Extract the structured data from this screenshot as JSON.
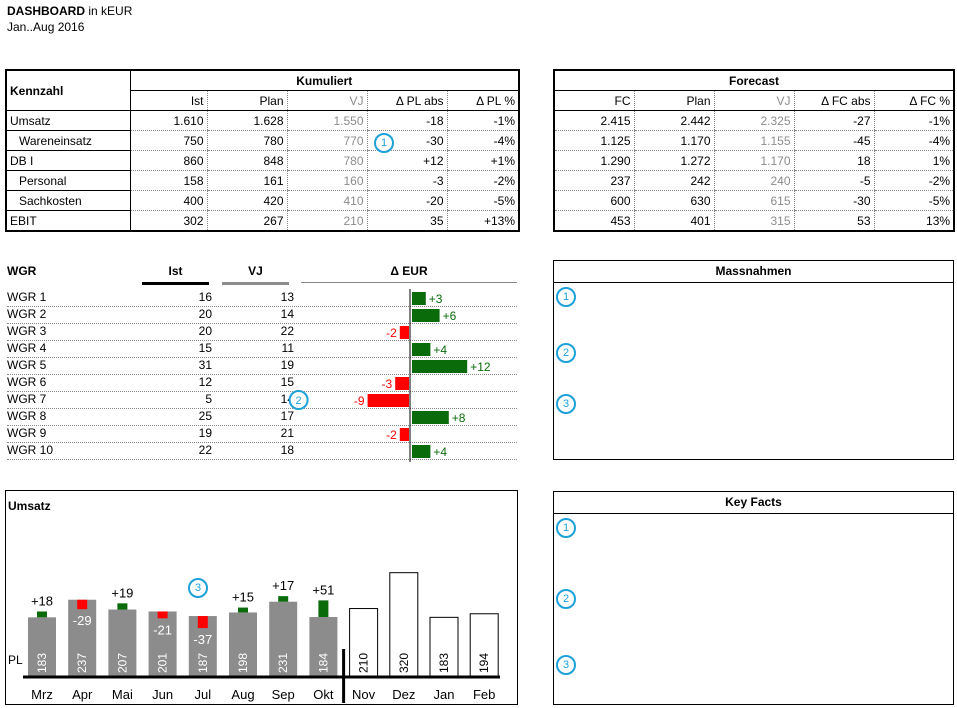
{
  "header": {
    "title": "DASHBOARD",
    "unit": "in kEUR",
    "period": "Jan..Aug 2016"
  },
  "kpi_table": {
    "row_header": "Kennzahl",
    "cum_title": "Kumuliert",
    "fc_title": "Forecast",
    "cum_cols": [
      "Ist",
      "Plan",
      "VJ",
      "Δ PL abs",
      "Δ PL %"
    ],
    "fc_cols": [
      "FC",
      "Plan",
      "VJ",
      "Δ FC abs",
      "Δ FC %"
    ],
    "rows": [
      {
        "label": "Umsatz",
        "sub": false,
        "cum": [
          "1.610",
          "1.628",
          "1.550",
          "-18",
          "-1%"
        ],
        "fc": [
          "2.415",
          "2.442",
          "2.325",
          "-27",
          "-1%"
        ]
      },
      {
        "label": "Wareneinsatz",
        "sub": true,
        "cum": [
          "750",
          "780",
          "770",
          "-30",
          "-4%"
        ],
        "fc": [
          "1.125",
          "1.170",
          "1.155",
          "-45",
          "-4%"
        ]
      },
      {
        "label": "DB I",
        "sub": false,
        "cum": [
          "860",
          "848",
          "780",
          "+12",
          "+1%"
        ],
        "fc": [
          "1.290",
          "1.272",
          "1.170",
          "18",
          "1%"
        ]
      },
      {
        "label": "Personal",
        "sub": true,
        "cum": [
          "158",
          "161",
          "160",
          "-3",
          "-2%"
        ],
        "fc": [
          "237",
          "242",
          "240",
          "-5",
          "-2%"
        ]
      },
      {
        "label": "Sachkosten",
        "sub": true,
        "cum": [
          "400",
          "420",
          "410",
          "-20",
          "-5%"
        ],
        "fc": [
          "600",
          "630",
          "615",
          "-30",
          "-5%"
        ]
      },
      {
        "label": "EBIT",
        "sub": false,
        "cum": [
          "302",
          "267",
          "210",
          "35",
          "+13%"
        ],
        "fc": [
          "453",
          "401",
          "315",
          "53",
          "13%"
        ]
      }
    ],
    "marker": "1"
  },
  "wgr": {
    "headers": {
      "name": "WGR",
      "ist": "Ist",
      "vj": "VJ",
      "delta": "Δ EUR"
    },
    "rows": [
      {
        "name": "WGR 1",
        "ist": 16,
        "vj": 13,
        "delta": 3,
        "delta_label": "+3"
      },
      {
        "name": "WGR 2",
        "ist": 20,
        "vj": 14,
        "delta": 6,
        "delta_label": "+6"
      },
      {
        "name": "WGR 3",
        "ist": 20,
        "vj": 22,
        "delta": -2,
        "delta_label": "-2"
      },
      {
        "name": "WGR 4",
        "ist": 15,
        "vj": 11,
        "delta": 4,
        "delta_label": "+4"
      },
      {
        "name": "WGR 5",
        "ist": 31,
        "vj": 19,
        "delta": 12,
        "delta_label": "+12"
      },
      {
        "name": "WGR 6",
        "ist": 12,
        "vj": 15,
        "delta": -3,
        "delta_label": "-3"
      },
      {
        "name": "WGR 7",
        "ist": 5,
        "vj": 14,
        "delta": -9,
        "delta_label": "-9"
      },
      {
        "name": "WGR 8",
        "ist": 25,
        "vj": 17,
        "delta": 8,
        "delta_label": "+8"
      },
      {
        "name": "WGR 9",
        "ist": 19,
        "vj": 21,
        "delta": -2,
        "delta_label": "-2"
      },
      {
        "name": "WGR 10",
        "ist": 22,
        "vj": 18,
        "delta": 4,
        "delta_label": "+4"
      }
    ],
    "marker": "2"
  },
  "massnahmen": {
    "title": "Massnahmen",
    "markers": [
      "1",
      "2",
      "3"
    ]
  },
  "key_facts": {
    "title": "Key Facts",
    "markers": [
      "1",
      "2",
      "3"
    ]
  },
  "umsatz_chart": {
    "title": "Umsatz",
    "pl_label": "PL",
    "marker": "3"
  },
  "colors": {
    "positive": "#0a6b0a",
    "negative": "#ff0000",
    "actual_bar": "#8c8c8c",
    "marker": "#1ea1d8"
  },
  "chart_data": {
    "type": "bar",
    "title": "Umsatz",
    "categories": [
      "Mrz",
      "Apr",
      "Mai",
      "Jun",
      "Jul",
      "Aug",
      "Sep",
      "Okt",
      "Nov",
      "Dez",
      "Jan",
      "Feb"
    ],
    "series": [
      {
        "name": "PL",
        "values": [
          183,
          237,
          207,
          201,
          187,
          198,
          231,
          184,
          210,
          320,
          183,
          194
        ]
      }
    ],
    "actual_months": 8,
    "delta": [
      18,
      -29,
      19,
      -21,
      -37,
      15,
      17,
      51,
      null,
      null,
      null,
      null
    ],
    "delta_labels": [
      "+18",
      "-29",
      "+19",
      "-21",
      "-37",
      "+15",
      "+17",
      "+51",
      "",
      "",
      "",
      ""
    ]
  }
}
